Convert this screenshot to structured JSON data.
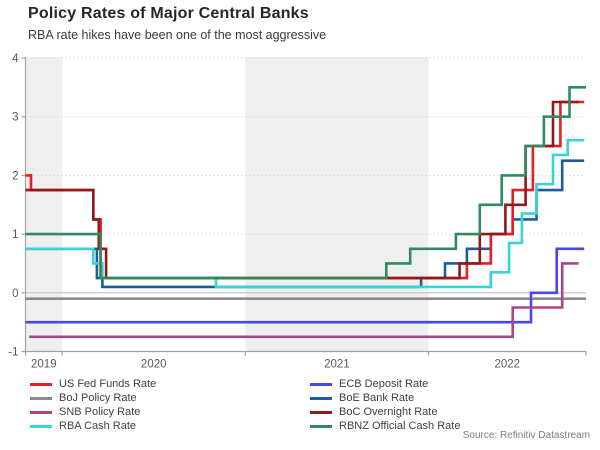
{
  "source": "Source: Refinitiv Datastream",
  "chart_data": {
    "type": "line",
    "step": true,
    "title": "Policy Rates of Major Central Banks",
    "subtitle": "RBA rate hikes have been one of the most aggressive",
    "xlabel": "",
    "ylabel": "",
    "xlim": [
      2019.8,
      2022.86
    ],
    "ylim": [
      -1,
      4
    ],
    "x_tick_labels": [
      "2019",
      "2020",
      "2021",
      "2022"
    ],
    "x_tick_label_positions": [
      2019.9,
      2020.5,
      2021.5,
      2022.43
    ],
    "x_boundary_ticks": [
      2019.8,
      2020,
      2021,
      2022,
      2022.86
    ],
    "y_ticks": [
      -1,
      0,
      1,
      2,
      3,
      4
    ],
    "grid": "dotted horizontal at integers, solid light line at 0",
    "year_shading_bands": [
      [
        2019.8,
        2020
      ],
      [
        2021,
        2022
      ]
    ],
    "band_color": "#efefef",
    "axis_color": "#a3a3a3",
    "grid_color": "#d9d9d9",
    "zero_line_color": "#c3c3c3",
    "tick_label_color": "#595959",
    "legend_position": "bottom, two columns",
    "draw_order": [
      "boj",
      "ecb",
      "snb",
      "boe",
      "fed",
      "boc",
      "rba",
      "rbnz"
    ],
    "series": [
      {
        "key": "fed",
        "name": "US Fed Funds Rate",
        "color": "#e81e25",
        "legend_column": "left",
        "points": [
          [
            2019.8,
            2.0
          ],
          [
            2019.83,
            1.75
          ],
          [
            2020.17,
            1.25
          ],
          [
            2020.21,
            0.25
          ],
          [
            2022.21,
            0.5
          ],
          [
            2022.34,
            1.0
          ],
          [
            2022.46,
            1.75
          ],
          [
            2022.57,
            2.5
          ],
          [
            2022.72,
            3.25
          ],
          [
            2022.85,
            3.25
          ]
        ]
      },
      {
        "key": "boj",
        "name": "BoJ Policy Rate",
        "color": "#8a8a8a",
        "legend_column": "left",
        "points": [
          [
            2019.8,
            -0.1
          ],
          [
            2022.86,
            -0.1
          ]
        ]
      },
      {
        "key": "snb",
        "name": "SNB Policy Rate",
        "color": "#a84689",
        "legend_column": "left",
        "points": [
          [
            2019.82,
            -0.75
          ],
          [
            2022.46,
            -0.25
          ],
          [
            2022.73,
            0.5
          ],
          [
            2022.82,
            0.5
          ]
        ]
      },
      {
        "key": "rba",
        "name": "RBA Cash Rate",
        "color": "#3bd4d6",
        "legend_column": "left",
        "points": [
          [
            2019.8,
            0.75
          ],
          [
            2020.17,
            0.5
          ],
          [
            2020.22,
            0.25
          ],
          [
            2020.84,
            0.1
          ],
          [
            2022.34,
            0.35
          ],
          [
            2022.44,
            0.85
          ],
          [
            2022.51,
            1.35
          ],
          [
            2022.59,
            1.85
          ],
          [
            2022.68,
            2.35
          ],
          [
            2022.76,
            2.6
          ],
          [
            2022.85,
            2.6
          ]
        ]
      },
      {
        "key": "ecb",
        "name": "ECB Deposit Rate",
        "color": "#4747ee",
        "legend_column": "right",
        "points": [
          [
            2019.8,
            -0.5
          ],
          [
            2022.56,
            0.0
          ],
          [
            2022.7,
            0.75
          ],
          [
            2022.85,
            0.75
          ]
        ]
      },
      {
        "key": "boe",
        "name": "BoE Bank Rate",
        "color": "#1e5c9e",
        "legend_column": "right",
        "points": [
          [
            2019.8,
            0.75
          ],
          [
            2020.19,
            0.25
          ],
          [
            2020.22,
            0.1
          ],
          [
            2021.96,
            0.25
          ],
          [
            2022.09,
            0.5
          ],
          [
            2022.21,
            0.75
          ],
          [
            2022.34,
            1.0
          ],
          [
            2022.46,
            1.25
          ],
          [
            2022.59,
            1.75
          ],
          [
            2022.73,
            2.25
          ],
          [
            2022.85,
            2.25
          ]
        ]
      },
      {
        "key": "boc",
        "name": "BoC Overnight Rate",
        "color": "#8f1a1c",
        "legend_column": "right",
        "points": [
          [
            2019.8,
            1.75
          ],
          [
            2020.17,
            1.25
          ],
          [
            2020.2,
            0.75
          ],
          [
            2020.24,
            0.25
          ],
          [
            2022.17,
            0.5
          ],
          [
            2022.28,
            1.0
          ],
          [
            2022.42,
            1.5
          ],
          [
            2022.53,
            2.5
          ],
          [
            2022.68,
            3.25
          ],
          [
            2022.82,
            3.25
          ]
        ]
      },
      {
        "key": "rbnz",
        "name": "RBNZ Official Cash Rate",
        "color": "#2f8b5e",
        "legend_column": "right",
        "points": [
          [
            2019.8,
            1.0
          ],
          [
            2020.21,
            0.25
          ],
          [
            2021.77,
            0.5
          ],
          [
            2021.9,
            0.75
          ],
          [
            2022.15,
            1.0
          ],
          [
            2022.28,
            1.5
          ],
          [
            2022.4,
            2.0
          ],
          [
            2022.53,
            2.5
          ],
          [
            2022.63,
            3.0
          ],
          [
            2022.77,
            3.5
          ],
          [
            2022.86,
            3.5
          ]
        ]
      }
    ]
  }
}
